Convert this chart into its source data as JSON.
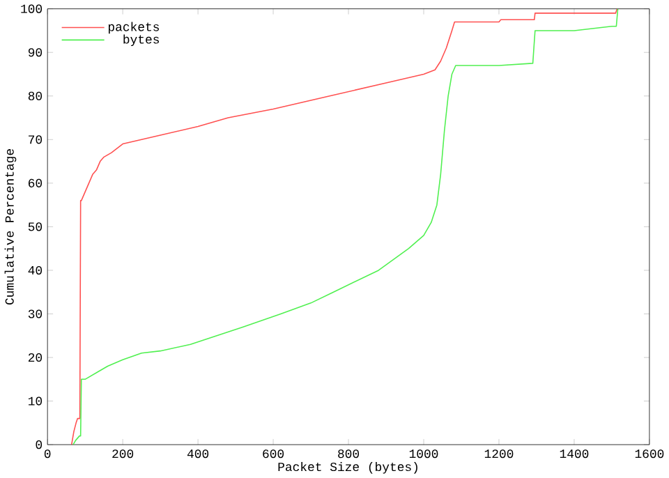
{
  "chart_data": {
    "type": "line",
    "xlabel": "Packet Size (bytes)",
    "ylabel": "Cumulative Percentage",
    "xlim": [
      0,
      1600
    ],
    "ylim": [
      0,
      100
    ],
    "xticks": [
      0,
      200,
      400,
      600,
      800,
      1000,
      1200,
      1400,
      1600
    ],
    "yticks": [
      0,
      10,
      20,
      30,
      40,
      50,
      60,
      70,
      80,
      90,
      100
    ],
    "legend": "top left",
    "grid": false,
    "marker": "none",
    "line_style": "solid",
    "series": [
      {
        "name": "packets",
        "color": "#ff5050",
        "x": [
          64,
          70,
          76,
          80,
          86,
          88,
          90,
          95,
          100,
          110,
          120,
          130,
          140,
          150,
          170,
          200,
          250,
          300,
          400,
          480,
          600,
          750,
          900,
          1000,
          1030,
          1045,
          1060,
          1075,
          1082,
          1200,
          1205,
          1294,
          1296,
          1510,
          1514
        ],
        "values": [
          0,
          3,
          5,
          6,
          6,
          56,
          56,
          57,
          58,
          60,
          62,
          63,
          65,
          66,
          67,
          69,
          70,
          71,
          73,
          75,
          77,
          80,
          83,
          85,
          86,
          88,
          91,
          95,
          97,
          97,
          97.5,
          97.5,
          99,
          99,
          100
        ]
      },
      {
        "name": "bytes",
        "color": "#50f050",
        "x": [
          68,
          75,
          85,
          88,
          90,
          100,
          120,
          140,
          160,
          200,
          250,
          300,
          380,
          450,
          520,
          620,
          700,
          760,
          880,
          960,
          1000,
          1020,
          1035,
          1045,
          1055,
          1065,
          1075,
          1085,
          1200,
          1290,
          1292,
          1296,
          1400,
          1500,
          1512,
          1516
        ],
        "values": [
          0,
          1,
          2,
          2,
          15,
          15,
          16,
          17,
          18,
          19.5,
          21,
          21.5,
          23,
          25,
          27,
          30,
          32.5,
          35,
          40,
          45,
          48,
          51,
          55,
          62,
          72,
          80,
          85,
          87,
          87,
          87.5,
          90,
          95,
          95,
          96,
          96,
          100
        ]
      }
    ]
  }
}
